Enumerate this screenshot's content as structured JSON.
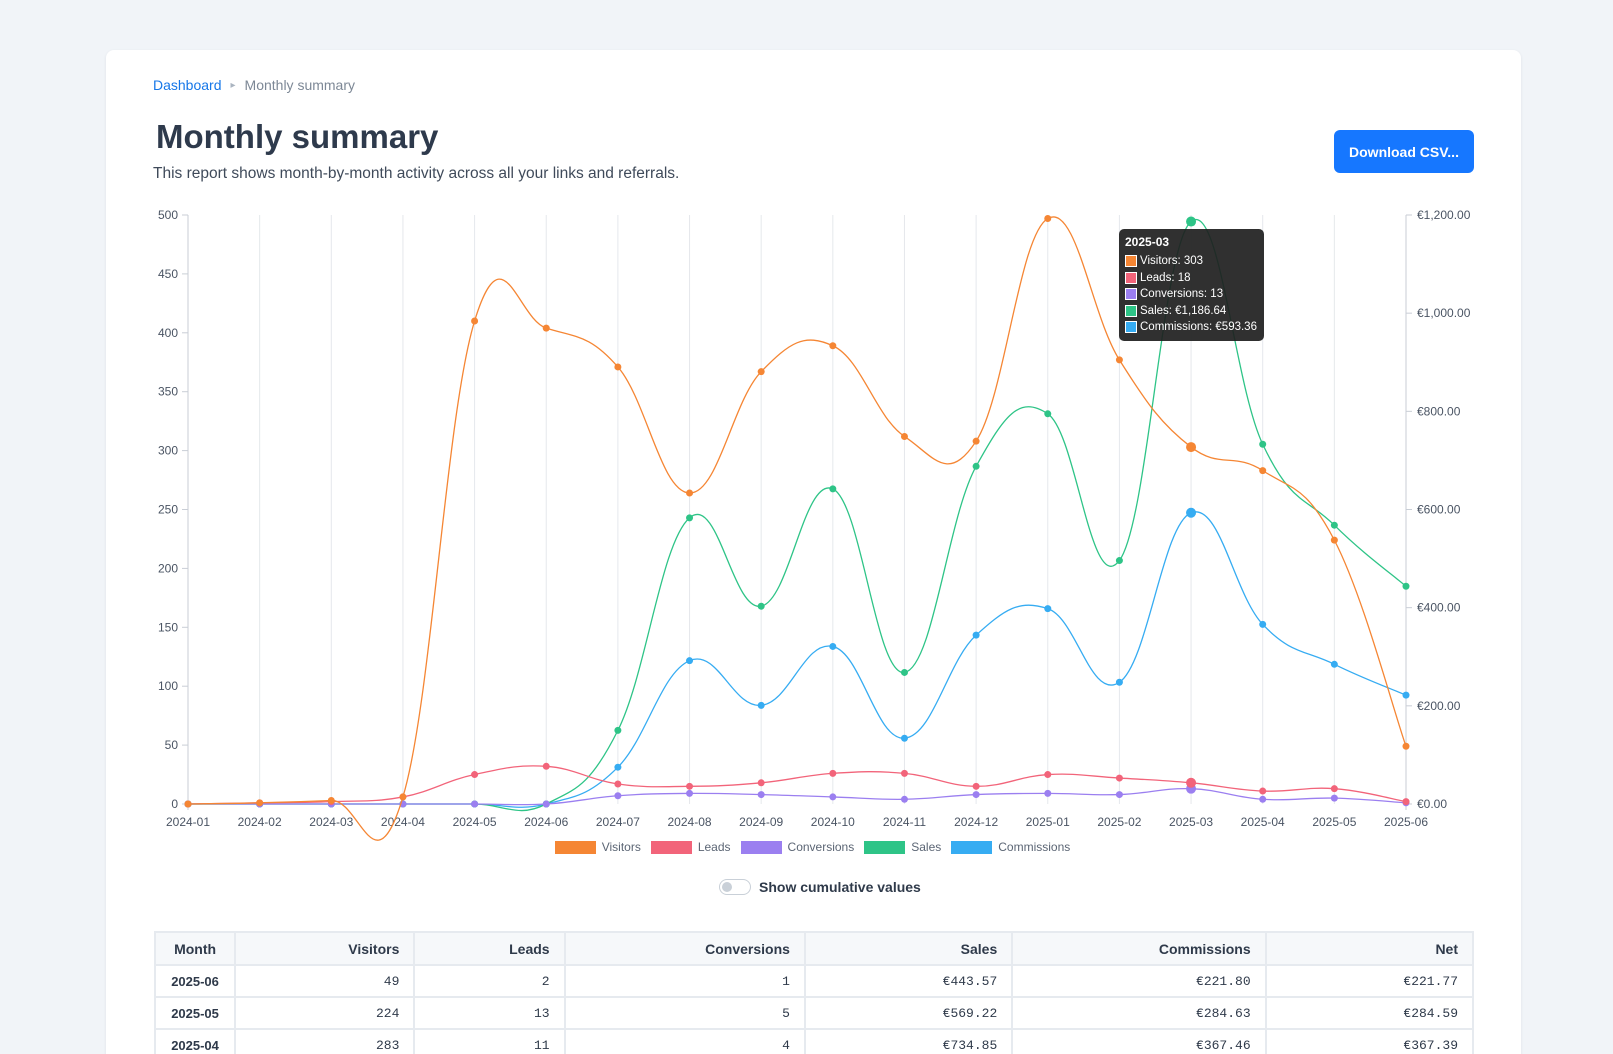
{
  "breadcrumb": {
    "root": "Dashboard",
    "current": "Monthly summary"
  },
  "header": {
    "title": "Monthly summary",
    "description": "This report shows month-by-month activity across all your links and referrals.",
    "download_label": "Download CSV..."
  },
  "colors": {
    "visitors": "#f58634",
    "leads": "#f2647a",
    "conversions": "#9b7ff0",
    "sales": "#2ec487",
    "commissions": "#36acf2",
    "accent": "#1677ff"
  },
  "chart_data": {
    "type": "line",
    "categories": [
      "2024-01",
      "2024-02",
      "2024-03",
      "2024-04",
      "2024-05",
      "2024-06",
      "2024-07",
      "2024-08",
      "2024-09",
      "2024-10",
      "2024-11",
      "2024-12",
      "2025-01",
      "2025-02",
      "2025-03",
      "2025-04",
      "2025-05",
      "2025-06"
    ],
    "y_left": {
      "min": 0,
      "max": 500,
      "ticks": [
        "0",
        "50",
        "100",
        "150",
        "200",
        "250",
        "300",
        "350",
        "400",
        "450",
        "500"
      ]
    },
    "y_right": {
      "min": 0,
      "max": 1200,
      "ticks": [
        "€0.00",
        "€200.00",
        "€400.00",
        "€600.00",
        "€800.00",
        "€1,000.00",
        "€1,200.00"
      ]
    },
    "grid": "vertical",
    "legend_position": "bottom",
    "series": [
      {
        "name": "Visitors",
        "axis": "left",
        "color": "#f58634",
        "values": [
          0,
          1,
          3,
          6,
          410,
          404,
          371,
          264,
          367,
          389,
          312,
          308,
          497,
          377,
          303,
          283,
          224,
          49
        ]
      },
      {
        "name": "Leads",
        "axis": "left",
        "color": "#f2647a",
        "values": [
          0,
          1,
          2,
          6,
          25,
          32,
          17,
          15,
          18,
          26,
          26,
          15,
          25,
          22,
          18,
          11,
          13,
          2
        ]
      },
      {
        "name": "Conversions",
        "axis": "left",
        "color": "#9b7ff0",
        "values": [
          0,
          0,
          0,
          0,
          0,
          0,
          7,
          9,
          8,
          6,
          4,
          8,
          9,
          8,
          13,
          4,
          5,
          1
        ]
      },
      {
        "name": "Sales",
        "axis": "right",
        "color": "#2ec487",
        "values": [
          0,
          0,
          0,
          0,
          0,
          0,
          150,
          583,
          403,
          642,
          268,
          688,
          795,
          496,
          1186.64,
          733,
          568,
          443.57
        ]
      },
      {
        "name": "Commissions",
        "axis": "right",
        "color": "#36acf2",
        "values": [
          0,
          0,
          0,
          0,
          0,
          0,
          75,
          292,
          201,
          321,
          134,
          344,
          398,
          248,
          593.36,
          366,
          284.63,
          221.8
        ]
      }
    ],
    "highlight_index": 14
  },
  "tooltip": {
    "title": "2025-03",
    "rows": [
      "Visitors: 303",
      "Leads: 18",
      "Conversions: 13",
      "Sales: €1,186.64",
      "Commissions: €593.36"
    ]
  },
  "toggle": {
    "label": "Show cumulative values"
  },
  "table": {
    "headers": [
      "Month",
      "Visitors",
      "Leads",
      "Conversions",
      "Sales",
      "Commissions",
      "Net"
    ],
    "rows": [
      [
        "2025-06",
        "49",
        "2",
        "1",
        "€443.57",
        "€221.80",
        "€221.77"
      ],
      [
        "2025-05",
        "224",
        "13",
        "5",
        "€569.22",
        "€284.63",
        "€284.59"
      ],
      [
        "2025-04",
        "283",
        "11",
        "4",
        "€734.85",
        "€367.46",
        "€367.39"
      ]
    ]
  }
}
